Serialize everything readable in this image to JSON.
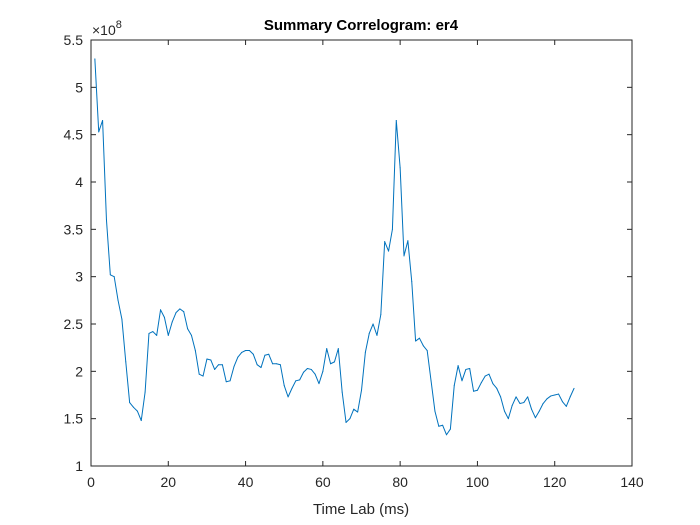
{
  "chart_data": {
    "type": "line",
    "title": "Summary Correlogram: er4",
    "xlabel": "Time Lab (ms)",
    "ylabel": "",
    "xlim": [
      0,
      140
    ],
    "ylim": [
      1,
      5.5
    ],
    "y_exponent_label": "×10",
    "y_exponent_power": "8",
    "x_ticks": [
      0,
      20,
      40,
      60,
      80,
      100,
      120,
      140
    ],
    "y_ticks": [
      1,
      1.5,
      2,
      2.5,
      3,
      3.5,
      4,
      4.5,
      5,
      5.5
    ],
    "y_tick_labels": [
      "1",
      "1.5",
      "2",
      "2.5",
      "3",
      "3.5",
      "4",
      "4.5",
      "5",
      "5.5"
    ],
    "grid": false,
    "line_color": "#0072BD",
    "series": [
      {
        "x": [
          1,
          2,
          3,
          4,
          5,
          6,
          7,
          8,
          9,
          10,
          11,
          12,
          13,
          14,
          15,
          16,
          17,
          18,
          19,
          20,
          21,
          22,
          23,
          24,
          25,
          26,
          27,
          28,
          29,
          30,
          31,
          32,
          33,
          34,
          35,
          36,
          37,
          38,
          39,
          40,
          41,
          42,
          43,
          44,
          45,
          46,
          47,
          48,
          49,
          50,
          51,
          52,
          53,
          54,
          55,
          56,
          57,
          58,
          59,
          60,
          61,
          62,
          63,
          64,
          65,
          66,
          67,
          68,
          69,
          70,
          71,
          72,
          73,
          74,
          75,
          76,
          77,
          78,
          79,
          80,
          81,
          82,
          83,
          84,
          85,
          86,
          87,
          88,
          89,
          90,
          91,
          92,
          93,
          94,
          95,
          96,
          97,
          98,
          99,
          100,
          101,
          102,
          103,
          104,
          105,
          106,
          107,
          108,
          109,
          110,
          111,
          112,
          113,
          114,
          115,
          116,
          117,
          118,
          119,
          120,
          121,
          122,
          123,
          124,
          125
        ],
        "y": [
          5.3,
          4.53,
          4.65,
          3.6,
          3.02,
          3.0,
          2.75,
          2.55,
          2.1,
          1.67,
          1.62,
          1.58,
          1.48,
          1.78,
          2.4,
          2.42,
          2.38,
          2.65,
          2.57,
          2.38,
          2.52,
          2.62,
          2.66,
          2.63,
          2.45,
          2.38,
          2.22,
          1.97,
          1.95,
          2.13,
          2.12,
          2.02,
          2.07,
          2.07,
          1.89,
          1.9,
          2.05,
          2.15,
          2.2,
          2.22,
          2.22,
          2.18,
          2.07,
          2.04,
          2.17,
          2.18,
          2.08,
          2.08,
          2.07,
          1.85,
          1.73,
          1.82,
          1.9,
          1.91,
          1.99,
          2.03,
          2.02,
          1.97,
          1.87,
          2.0,
          2.24,
          2.08,
          2.1,
          2.24,
          1.78,
          1.46,
          1.5,
          1.6,
          1.57,
          1.8,
          2.2,
          2.4,
          2.5,
          2.38,
          2.6,
          3.37,
          3.27,
          3.5,
          4.65,
          4.15,
          3.22,
          3.38,
          2.95,
          2.32,
          2.35,
          2.27,
          2.22,
          1.9,
          1.58,
          1.42,
          1.43,
          1.33,
          1.39,
          1.85,
          2.06,
          1.9,
          2.02,
          2.03,
          1.79,
          1.8,
          1.88,
          1.95,
          1.97,
          1.87,
          1.82,
          1.73,
          1.58,
          1.5,
          1.64,
          1.73,
          1.66,
          1.67,
          1.73,
          1.6,
          1.51,
          1.58,
          1.66,
          1.71,
          1.74,
          1.75,
          1.76,
          1.68,
          1.63,
          1.73,
          1.82
        ]
      }
    ]
  }
}
